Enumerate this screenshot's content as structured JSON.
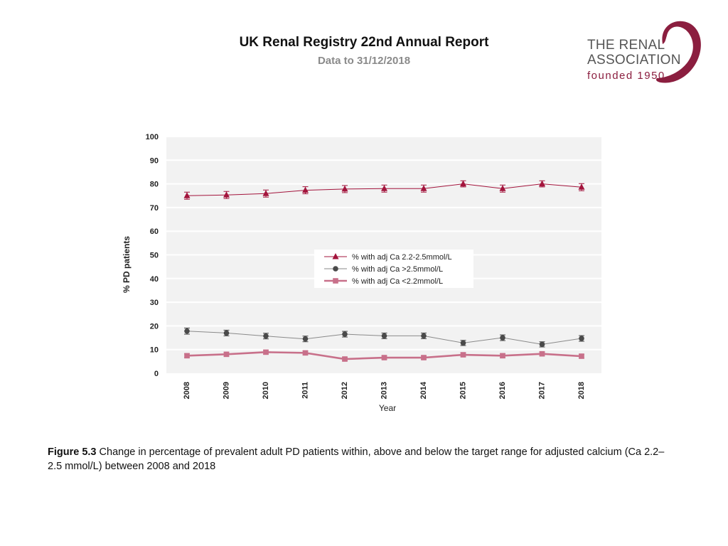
{
  "header": {
    "title": "UK Renal Registry 22nd Annual Report",
    "subtitle": "Data to 31/12/2018"
  },
  "logo": {
    "line1": "THE RENAL",
    "line2": "ASSOCIATION",
    "line3": "founded 1950",
    "color": "#8b1e3f"
  },
  "chart_data": {
    "type": "line",
    "title": "",
    "xlabel": "Year",
    "ylabel": "% PD patients",
    "ylim": [
      0,
      100
    ],
    "yticks": [
      0,
      10,
      20,
      30,
      40,
      50,
      60,
      70,
      80,
      90,
      100
    ],
    "categories": [
      "2008",
      "2009",
      "2010",
      "2011",
      "2012",
      "2013",
      "2014",
      "2015",
      "2016",
      "2017",
      "2018"
    ],
    "grid": true,
    "legend_position": "center-right",
    "series": [
      {
        "name": "% with adj Ca 2.2-2.5mmol/L",
        "marker": "triangle",
        "color": "#a3143c",
        "values": [
          75.0,
          75.3,
          75.9,
          77.3,
          77.8,
          78.0,
          78.0,
          80.0,
          78.0,
          80.0,
          78.6
        ],
        "error": [
          1.5,
          1.5,
          1.5,
          1.5,
          1.5,
          1.5,
          1.5,
          1.3,
          1.5,
          1.3,
          1.5
        ]
      },
      {
        "name": "% with adj Ca >2.5mmol/L",
        "marker": "circle",
        "color": "#4a4a4a",
        "line_color": "#8a8a8a",
        "values": [
          17.8,
          17.0,
          15.7,
          14.5,
          16.5,
          15.8,
          15.8,
          12.8,
          15.0,
          12.2,
          14.7
        ],
        "error": [
          1.3,
          1.2,
          1.2,
          1.2,
          1.2,
          1.2,
          1.2,
          1.1,
          1.2,
          1.1,
          1.2
        ]
      },
      {
        "name": "% with adj Ca <2.2mmol/L",
        "marker": "square",
        "color": "#c8708a",
        "values": [
          7.4,
          8.0,
          8.9,
          8.6,
          6.0,
          6.6,
          6.6,
          7.8,
          7.4,
          8.2,
          7.2
        ],
        "error": [
          0.8,
          0.8,
          0.8,
          0.8,
          0.7,
          0.7,
          0.7,
          0.8,
          0.8,
          0.8,
          0.8
        ]
      }
    ]
  },
  "caption": {
    "label": "Figure 5.3",
    "text": " Change in percentage of prevalent adult PD patients within, above and below the target range for adjusted calcium (Ca 2.2–2.5 mmol/L) between 2008 and 2018"
  }
}
